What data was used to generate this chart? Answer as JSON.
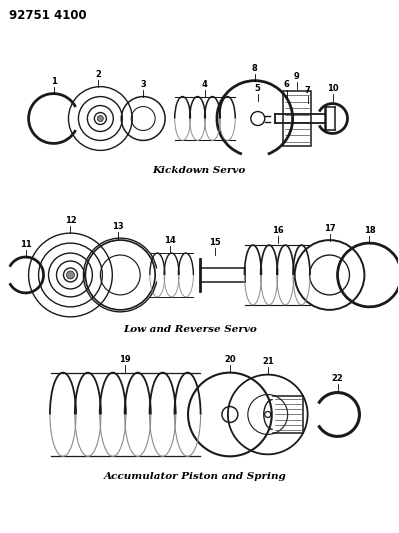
{
  "title": "92751 4100",
  "bg_color": "#ffffff",
  "line_color": "#1a1a1a",
  "fig_width": 3.99,
  "fig_height": 5.33,
  "dpi": 100,
  "section1_label": "Kickdown Servo",
  "section2_label": "Low and Reverse Servo",
  "section3_label": "Accumulator Piston and Spring",
  "s1y": 0.775,
  "s2y": 0.515,
  "s3y": 0.29
}
